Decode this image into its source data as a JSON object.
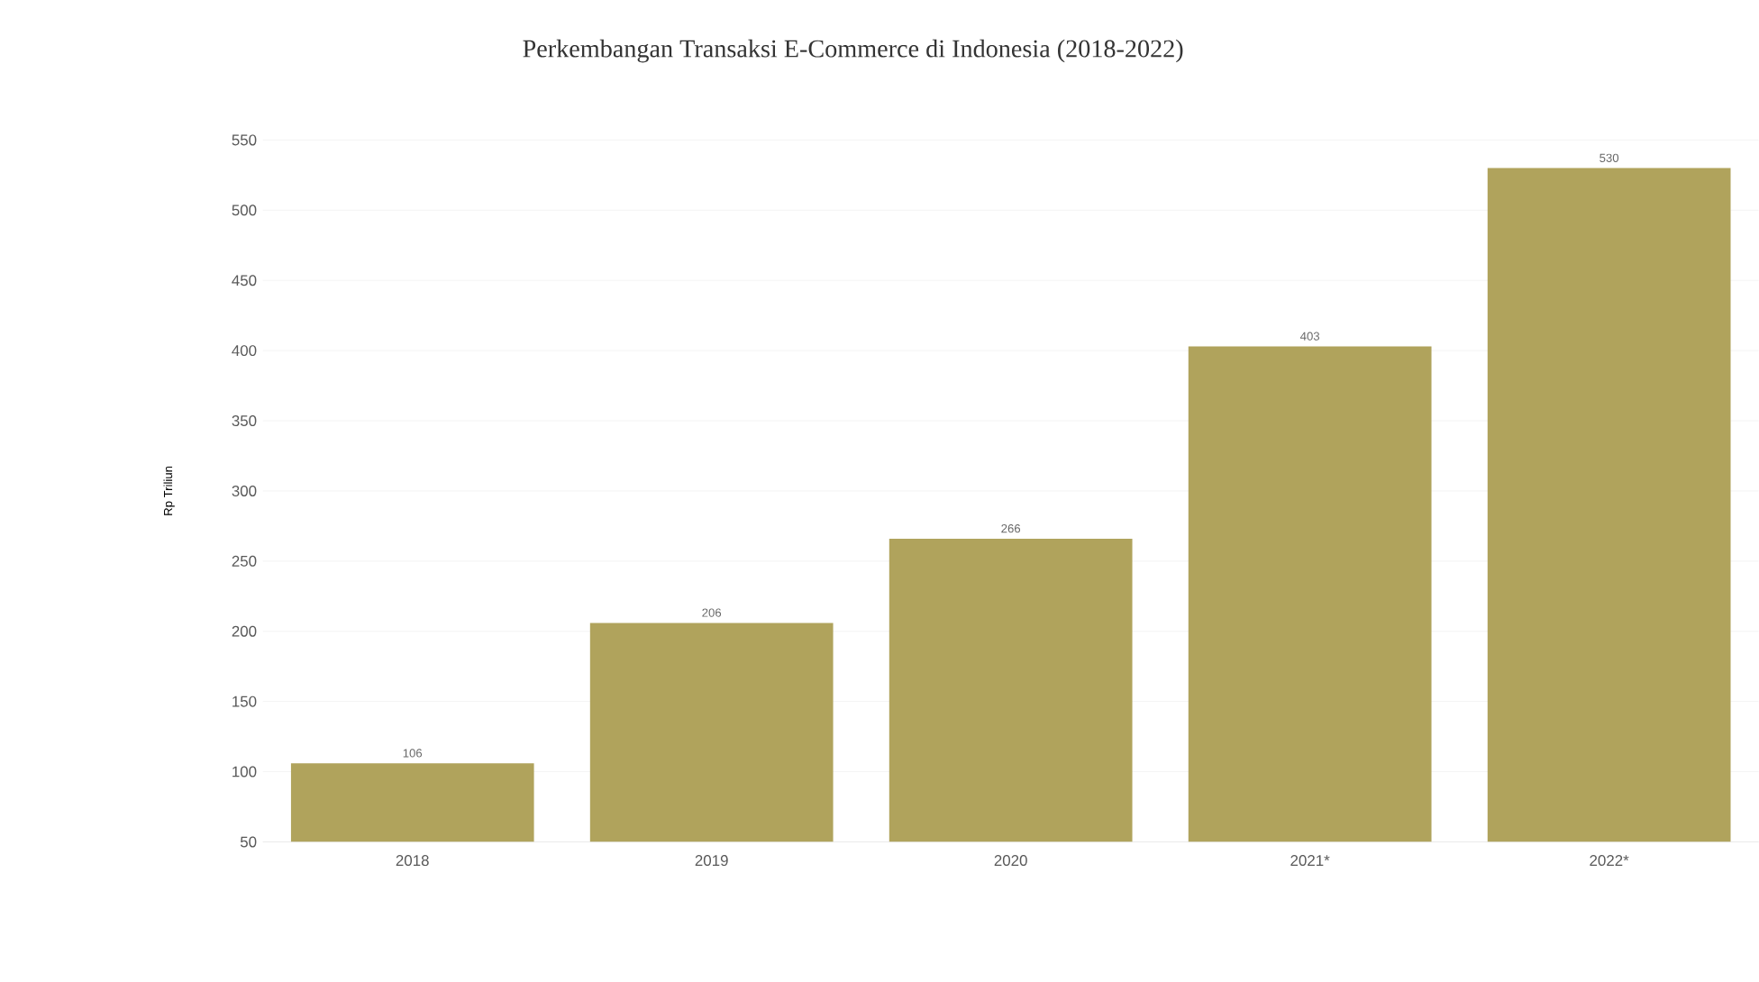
{
  "chart_data": {
    "type": "bar",
    "title": "Perkembangan Transaksi E-Commerce di Indonesia (2018-2022)",
    "ylabel": "Rp Triliun",
    "categories": [
      "2018",
      "2019",
      "2020",
      "2021*",
      "2022*"
    ],
    "values": [
      106,
      206,
      266,
      403,
      530
    ],
    "color": "#b0a35c",
    "ylim": [
      50,
      550
    ],
    "yticks": [
      50,
      100,
      150,
      200,
      250,
      300,
      350,
      400,
      450,
      500,
      550
    ],
    "grid": "y",
    "data_labels": true
  }
}
